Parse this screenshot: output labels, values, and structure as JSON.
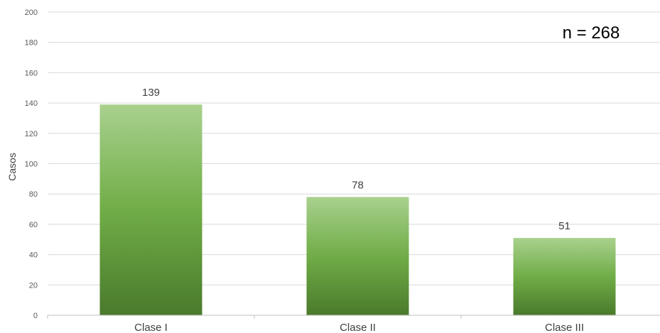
{
  "chart_data": {
    "type": "bar",
    "categories": [
      "Clase I",
      "Clase II",
      "Clase III"
    ],
    "values": [
      139,
      78,
      51
    ],
    "data_labels": [
      "139",
      "78",
      "51"
    ],
    "title": "",
    "xlabel": "",
    "ylabel": "Casos",
    "ylim": [
      0,
      200
    ],
    "yticks": [
      0,
      20,
      40,
      60,
      80,
      100,
      120,
      140,
      160,
      180,
      200
    ],
    "annotation": "n = 268",
    "grid": "horizontal",
    "bar_gradient": [
      "#a9d18e",
      "#70ad47",
      "#4a7a2c"
    ],
    "grid_color": "#d9d9d9",
    "axis_color": "#bfbfbf"
  }
}
